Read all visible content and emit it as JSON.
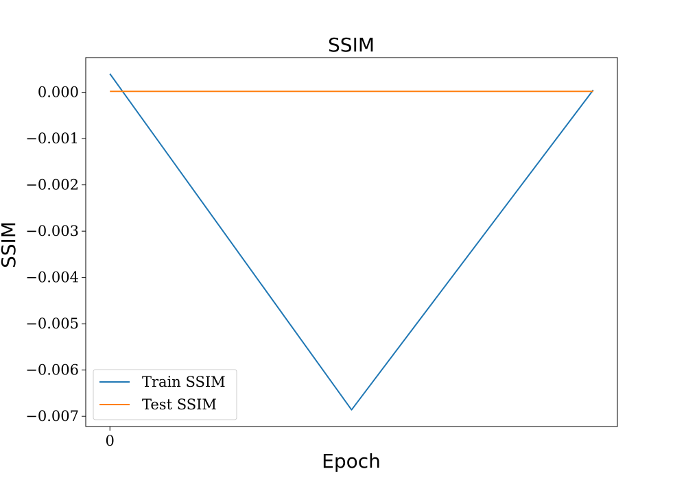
{
  "chart_data": {
    "type": "line",
    "title": "SSIM",
    "xlabel": "Epoch",
    "ylabel": "SSIM",
    "x": [
      0,
      1,
      2
    ],
    "xticks": [
      0
    ],
    "xtick_labels": [
      "0"
    ],
    "xlim": [
      -0.1,
      2.1
    ],
    "ylim": [
      -0.00722,
      0.00075
    ],
    "yticks": [
      0.0,
      -0.001,
      -0.002,
      -0.003,
      -0.004,
      -0.005,
      -0.006,
      -0.007
    ],
    "ytick_labels": [
      "0.000",
      "−0.001",
      "−0.002",
      "−0.003",
      "−0.004",
      "−0.005",
      "−0.006",
      "−0.007"
    ],
    "grid": false,
    "legend": "lower-left",
    "series": [
      {
        "name": "Train SSIM",
        "color": "#1f77b4",
        "values": [
          0.0004,
          -0.00686,
          5e-05
        ]
      },
      {
        "name": "Test SSIM",
        "color": "#ff7f0e",
        "values": [
          2e-05,
          2e-05,
          2e-05
        ]
      }
    ]
  }
}
